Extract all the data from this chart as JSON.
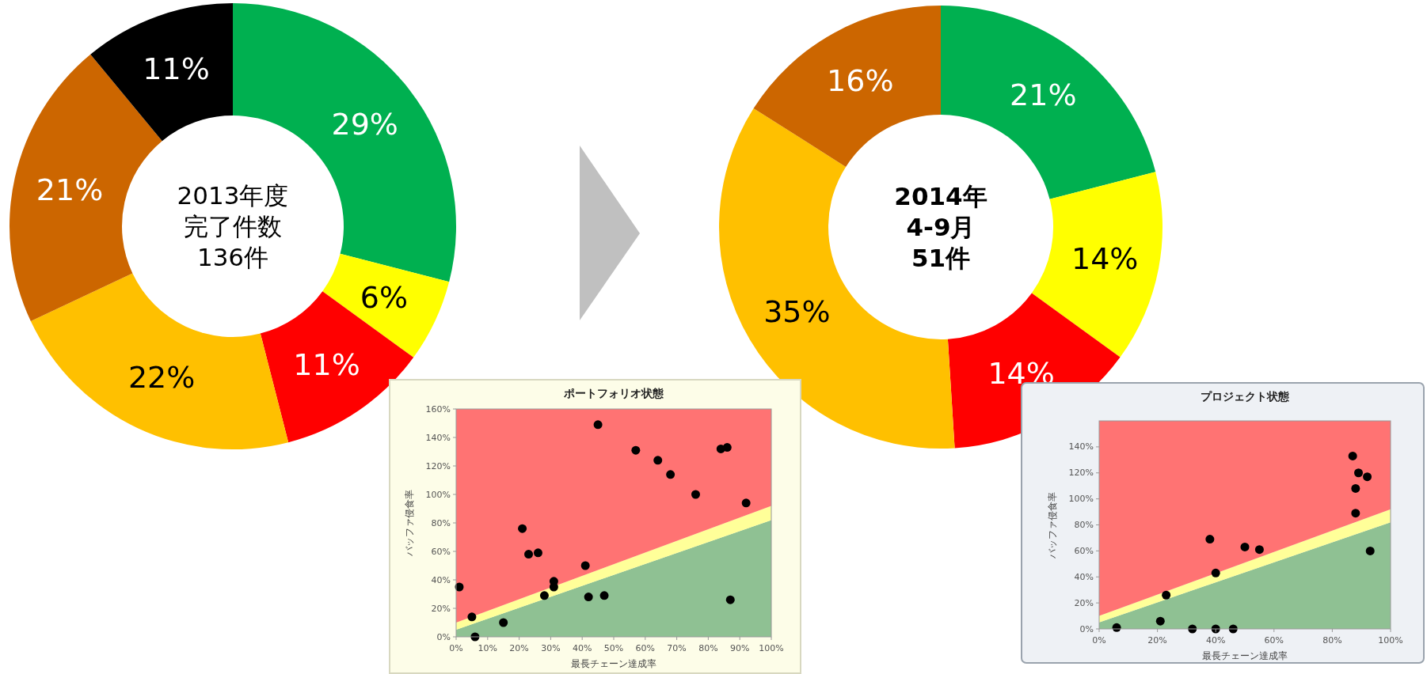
{
  "chart_data": [
    {
      "type": "donut",
      "categories": [
        null,
        null,
        null,
        null,
        null,
        null
      ],
      "values": [
        29,
        6,
        11,
        22,
        21,
        11
      ],
      "colors": [
        "#00b050",
        "#ffff00",
        "#ff0000",
        "#ffc000",
        "#cc6600",
        "#000000"
      ],
      "value_labels": [
        "29%",
        "6%",
        "11%",
        "22%",
        "21%",
        "11%"
      ],
      "annotations": [
        "2013年度",
        "完了件数",
        "136件"
      ]
    },
    {
      "type": "donut",
      "categories": [
        null,
        null,
        null,
        null,
        null
      ],
      "values": [
        21,
        14,
        14,
        35,
        16
      ],
      "colors": [
        "#00b050",
        "#ffff00",
        "#ff0000",
        "#ffc000",
        "#cc6600"
      ],
      "value_labels": [
        "21%",
        "14%",
        "14%",
        "35%",
        "16%"
      ],
      "annotations": [
        "2014年",
        "4-9月",
        "51件"
      ]
    },
    {
      "type": "scatter",
      "title": "ポートフォリオ状態",
      "xlabel": "最長チェーン達成率",
      "ylabel": "バッファ侵食率",
      "xlim": [
        0,
        100
      ],
      "ylim": [
        0,
        160
      ],
      "stacked": true,
      "xticks": [
        {
          "value": 0,
          "label": "0%"
        },
        {
          "value": 10,
          "label": "10%"
        },
        {
          "value": 20,
          "label": "20%"
        },
        {
          "value": 30,
          "label": "30%"
        },
        {
          "value": 40,
          "label": "40%"
        },
        {
          "value": 50,
          "label": "50%"
        },
        {
          "value": 60,
          "label": "60%"
        },
        {
          "value": 70,
          "label": "70%"
        },
        {
          "value": 80,
          "label": "80%"
        },
        {
          "value": 90,
          "label": "90%"
        },
        {
          "value": 100,
          "label": "100%"
        }
      ],
      "yticks": [
        {
          "value": 0,
          "label": "0%"
        },
        {
          "value": 20,
          "label": "20%"
        },
        {
          "value": 40,
          "label": "40%"
        },
        {
          "value": 60,
          "label": "60%"
        },
        {
          "value": 80,
          "label": "80%"
        },
        {
          "value": 100,
          "label": "100%"
        },
        {
          "value": 120,
          "label": "120%"
        },
        {
          "value": 140,
          "label": "140%"
        },
        {
          "value": 160,
          "label": "160%"
        }
      ],
      "series": [
        {
          "type": "area",
          "color": "#8fc193",
          "x": [
            0,
            100
          ],
          "values": [
            5,
            82
          ]
        },
        {
          "type": "area",
          "color": "#ffff99",
          "x": [
            0,
            100
          ],
          "values": [
            5,
            10
          ]
        },
        {
          "type": "area",
          "color": "#ff7373",
          "x": [
            0,
            100
          ],
          "values": [
            150,
            68
          ]
        },
        {
          "type": "scatter",
          "color": "#000000",
          "marker": "circle",
          "x": [
            1,
            5,
            6,
            15,
            21,
            23,
            26,
            28,
            31,
            31,
            41,
            42,
            47,
            45,
            57,
            64,
            68,
            76,
            84,
            86,
            87,
            92
          ],
          "values": [
            35,
            14,
            0,
            10,
            76,
            58,
            59,
            29,
            39,
            35,
            50,
            28,
            29,
            149,
            131,
            124,
            114,
            100,
            132,
            133,
            26,
            94
          ]
        }
      ]
    },
    {
      "type": "scatter",
      "title": "プロジェクト状態",
      "xlabel": "最長チェーン達成率",
      "ylabel": "バッファ侵食率",
      "xlim": [
        0,
        100
      ],
      "ylim": [
        0,
        160
      ],
      "stacked": true,
      "xticks": [
        {
          "value": 0,
          "label": "0%"
        },
        {
          "value": 20,
          "label": "20%"
        },
        {
          "value": 40,
          "label": "40%"
        },
        {
          "value": 60,
          "label": "60%"
        },
        {
          "value": 80,
          "label": "80%"
        },
        {
          "value": 100,
          "label": "100%"
        }
      ],
      "yticks": [
        {
          "value": 0,
          "label": "0%"
        },
        {
          "value": 20,
          "label": "20%"
        },
        {
          "value": 40,
          "label": "40%"
        },
        {
          "value": 60,
          "label": "60%"
        },
        {
          "value": 80,
          "label": "80%"
        },
        {
          "value": 100,
          "label": "100%"
        },
        {
          "value": 120,
          "label": "120%"
        },
        {
          "value": 140,
          "label": "140%"
        }
      ],
      "series": [
        {
          "type": "area",
          "color": "#8fc193",
          "x": [
            0,
            100
          ],
          "values": [
            5,
            82
          ]
        },
        {
          "type": "area",
          "color": "#ffff99",
          "x": [
            0,
            100
          ],
          "values": [
            5,
            10
          ]
        },
        {
          "type": "area",
          "color": "#ff7373",
          "x": [
            0,
            100
          ],
          "values": [
            150,
            68
          ]
        },
        {
          "type": "scatter",
          "color": "#000000",
          "marker": "circle",
          "x": [
            6,
            21,
            23,
            32,
            38,
            40,
            40,
            46,
            50,
            55,
            87,
            89,
            92,
            88,
            88,
            93
          ],
          "values": [
            1,
            6,
            26,
            0,
            69,
            43,
            0,
            0,
            63,
            61,
            133,
            120,
            117,
            108,
            89,
            60
          ]
        }
      ]
    }
  ]
}
